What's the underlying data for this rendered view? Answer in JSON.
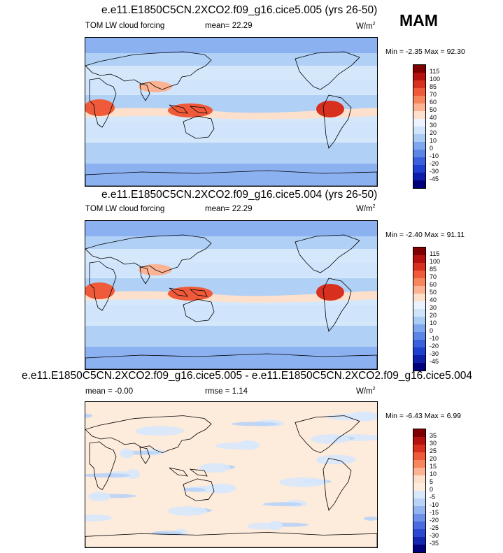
{
  "season": "MAM",
  "panels": [
    {
      "title": "e.e11.E1850C5CN.2XCO2.f09_g16.cice5.005 (yrs 26-50)",
      "left_label": "TOM LW cloud forcing",
      "stat_label": "mean=",
      "stat_value": "22.29",
      "units": "W/m",
      "units_sup": "2",
      "min_label": "Min =",
      "min": "-2.35",
      "max_label": "Max =",
      "max": "92.30"
    },
    {
      "title": "e.e11.E1850C5CN.2XCO2.f09_g16.cice5.004 (yrs 26-50)",
      "left_label": "TOM LW cloud forcing",
      "stat_label": "mean=",
      "stat_value": "22.29",
      "units": "W/m",
      "units_sup": "2",
      "min_label": "Min =",
      "min": "-2.40",
      "max_label": "Max =",
      "max": "91.11"
    },
    {
      "title": "e.e11.E1850C5CN.2XCO2.f09_g16.cice5.005 - e.e11.E1850C5CN.2XCO2.f09_g16.cice5.004",
      "left_label": "mean =",
      "left_value": "-0.00",
      "stat_label": "rmse =",
      "stat_value": "1.14",
      "units": "W/m",
      "units_sup": "2",
      "min_label": "Min =",
      "min": "-6.43",
      "max_label": "Max =",
      "max": "6.99"
    }
  ],
  "chart_data": [
    {
      "type": "heatmap",
      "field": "TOM LW cloud forcing",
      "units": "W/m2",
      "mean": 22.29,
      "min": -2.35,
      "max": 92.3,
      "colorbar_levels": [
        "115",
        "100",
        "85",
        "70",
        "60",
        "50",
        "40",
        "30",
        "20",
        "10",
        "0",
        "-10",
        "-20",
        "-30",
        "-45"
      ],
      "colors": [
        "#7f0000",
        "#b3120e",
        "#d7301f",
        "#ef5a3a",
        "#f7865e",
        "#fbb393",
        "#fde0cc",
        "#eaf3ff",
        "#cfe4fb",
        "#a9cbf4",
        "#7fa7ee",
        "#5b86e6",
        "#3a60dc",
        "#1f3fd0",
        "#0d1fa8",
        "#00007a"
      ]
    },
    {
      "type": "heatmap",
      "field": "TOM LW cloud forcing",
      "units": "W/m2",
      "mean": 22.29,
      "min": -2.4,
      "max": 91.11,
      "colorbar_levels": [
        "115",
        "100",
        "85",
        "70",
        "60",
        "50",
        "40",
        "30",
        "20",
        "10",
        "0",
        "-10",
        "-20",
        "-30",
        "-45"
      ],
      "colors": [
        "#7f0000",
        "#b3120e",
        "#d7301f",
        "#ef5a3a",
        "#f7865e",
        "#fbb393",
        "#fde0cc",
        "#eaf3ff",
        "#cfe4fb",
        "#a9cbf4",
        "#7fa7ee",
        "#5b86e6",
        "#3a60dc",
        "#1f3fd0",
        "#0d1fa8",
        "#00007a"
      ]
    },
    {
      "type": "heatmap",
      "field": "difference",
      "units": "W/m2",
      "mean": -0.0,
      "rmse": 1.14,
      "min": -6.43,
      "max": 6.99,
      "colorbar_levels": [
        "35",
        "30",
        "25",
        "20",
        "15",
        "10",
        "5",
        "0",
        "-5",
        "-10",
        "-15",
        "-20",
        "-25",
        "-30",
        "-35"
      ],
      "colors": [
        "#7f0000",
        "#b3120e",
        "#d7301f",
        "#ef5a3a",
        "#f7865e",
        "#fbb393",
        "#fde0cc",
        "#fdebdc",
        "#d8e8fb",
        "#b9d3f6",
        "#93b4f0",
        "#6d90e9",
        "#4a6ce0",
        "#2c48d3",
        "#1326b0",
        "#00007a"
      ]
    }
  ]
}
